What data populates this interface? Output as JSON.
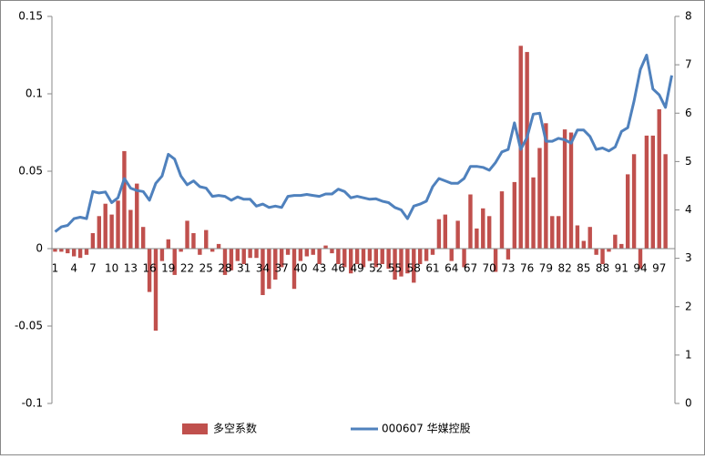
{
  "chart_data": {
    "type": "bar_line",
    "categories": [
      "1",
      null,
      null,
      "4",
      null,
      null,
      "7",
      null,
      null,
      "10",
      null,
      null,
      "13",
      null,
      null,
      "16",
      null,
      null,
      "19",
      null,
      null,
      "22",
      null,
      null,
      "25",
      null,
      null,
      "28",
      null,
      null,
      "31",
      null,
      null,
      "34",
      null,
      null,
      "37",
      null,
      null,
      "40",
      null,
      null,
      "43",
      null,
      null,
      "46",
      null,
      null,
      "49",
      null,
      null,
      "52",
      null,
      null,
      "55",
      null,
      null,
      "58",
      null,
      null,
      "61",
      null,
      null,
      "64",
      null,
      null,
      "67",
      null,
      null,
      "70",
      null,
      null,
      "73",
      null,
      null,
      "76",
      null,
      null,
      "79",
      null,
      null,
      "82",
      null,
      null,
      "85",
      null,
      null,
      "88",
      null,
      null,
      "91",
      null,
      null,
      "94",
      null,
      null,
      "97",
      null,
      null
    ],
    "series": [
      {
        "name": "多空系数",
        "color": "#c0504d",
        "type": "bar",
        "values": [
          -0.002,
          -0.002,
          -0.003,
          -0.005,
          -0.006,
          -0.004,
          0.01,
          0.021,
          0.029,
          0.022,
          0.031,
          0.063,
          0.025,
          0.042,
          0.014,
          -0.028,
          -0.053,
          -0.008,
          0.006,
          -0.017,
          -0.002,
          0.018,
          0.01,
          -0.004,
          0.012,
          -0.002,
          0.003,
          -0.017,
          -0.014,
          -0.008,
          -0.01,
          -0.006,
          -0.006,
          -0.03,
          -0.026,
          -0.02,
          -0.012,
          -0.004,
          -0.026,
          -0.008,
          -0.005,
          -0.004,
          -0.01,
          0.002,
          -0.003,
          -0.01,
          -0.012,
          -0.016,
          -0.01,
          -0.012,
          -0.008,
          -0.012,
          -0.01,
          -0.013,
          -0.02,
          -0.018,
          -0.016,
          -0.022,
          -0.01,
          -0.008,
          -0.004,
          0.019,
          0.022,
          -0.008,
          0.018,
          -0.012,
          0.035,
          0.013,
          0.026,
          0.021,
          -0.015,
          0.037,
          -0.007,
          0.043,
          0.131,
          0.127,
          0.046,
          0.065,
          0.081,
          0.021,
          0.021,
          0.077,
          0.075,
          0.015,
          0.005,
          0.014,
          -0.004,
          -0.01,
          -0.002,
          0.009,
          0.003,
          0.048,
          0.061,
          -0.013,
          0.073,
          0.073,
          0.09,
          0.061,
          null
        ]
      },
      {
        "name": "000607 华媒控股",
        "color": "#4f81bd",
        "type": "line",
        "axis": "y2",
        "values": [
          3.55,
          3.65,
          3.68,
          3.82,
          3.85,
          3.82,
          4.38,
          4.35,
          4.37,
          4.15,
          4.25,
          4.65,
          4.45,
          4.4,
          4.38,
          4.2,
          4.55,
          4.7,
          5.15,
          5.05,
          4.7,
          4.52,
          4.6,
          4.48,
          4.45,
          4.28,
          4.3,
          4.28,
          4.2,
          4.27,
          4.22,
          4.22,
          4.08,
          4.12,
          4.05,
          4.08,
          4.05,
          4.28,
          4.3,
          4.3,
          4.32,
          4.3,
          4.28,
          4.33,
          4.33,
          4.43,
          4.38,
          4.25,
          4.28,
          4.25,
          4.22,
          4.23,
          4.18,
          4.15,
          4.05,
          4.0,
          3.82,
          4.08,
          4.12,
          4.18,
          4.48,
          4.65,
          4.6,
          4.55,
          4.55,
          4.65,
          4.9,
          4.9,
          4.88,
          4.82,
          4.98,
          5.2,
          5.25,
          5.8,
          5.25,
          5.5,
          5.98,
          6.0,
          5.42,
          5.42,
          5.48,
          5.45,
          5.38,
          5.65,
          5.65,
          5.52,
          5.25,
          5.28,
          5.22,
          5.3,
          5.62,
          5.7,
          6.25,
          6.9,
          7.2,
          6.5,
          6.38,
          6.12,
          6.78
        ]
      }
    ],
    "ylim": [
      -0.1,
      0.15
    ],
    "yticks": [
      -0.1,
      -0.05,
      0,
      0.05,
      0.1,
      0.15
    ],
    "y2lim": [
      0,
      8
    ],
    "y2ticks": [
      0,
      1,
      2,
      3,
      4,
      5,
      6,
      7,
      8
    ],
    "legend": "bottom"
  }
}
